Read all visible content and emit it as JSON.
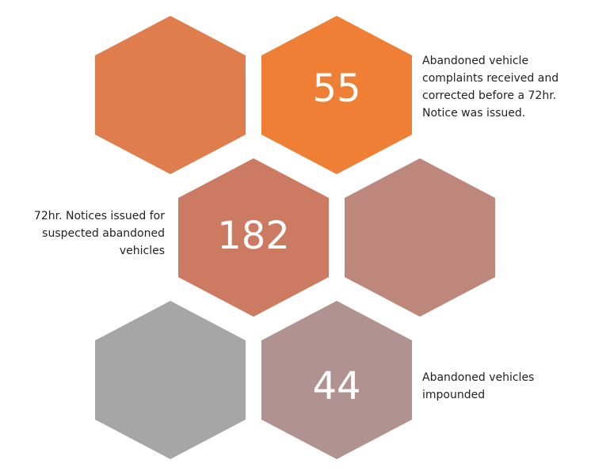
{
  "items": [
    {
      "value": 55,
      "text": [
        "Abandoned vehicle",
        "complaints received and",
        "corrected before a 72hr.",
        "Notice was issued."
      ]
    },
    {
      "value": 182,
      "text": [
        "72hr. Notices issued for",
        "suspected abandoned",
        "vehicles"
      ]
    },
    {
      "value": 44,
      "text": [
        "Abandoned vehicles",
        "impounded"
      ]
    }
  ]
}
